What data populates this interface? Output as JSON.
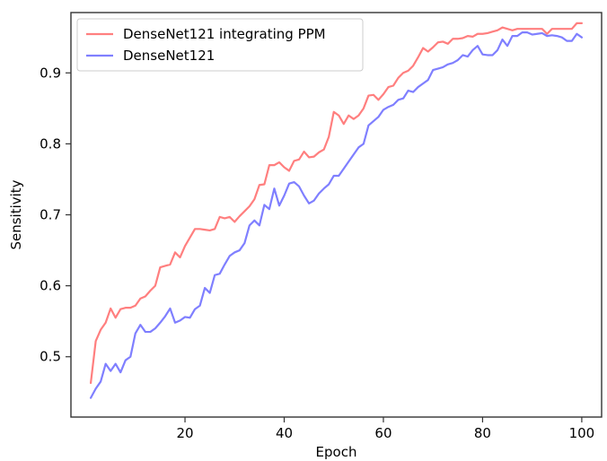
{
  "chart_data": {
    "type": "line",
    "title": "",
    "xlabel": "Epoch",
    "ylabel": "Sensitivity",
    "xlim": [
      -3,
      104
    ],
    "ylim": [
      0.415,
      0.985
    ],
    "x_ticks": [
      {
        "value": 20,
        "label": "20"
      },
      {
        "value": 40,
        "label": "40"
      },
      {
        "value": 60,
        "label": "60"
      },
      {
        "value": 80,
        "label": "80"
      },
      {
        "value": 100,
        "label": "100"
      }
    ],
    "y_ticks": [
      {
        "value": 0.5,
        "label": "0.5"
      },
      {
        "value": 0.6,
        "label": "0.6"
      },
      {
        "value": 0.7,
        "label": "0.7"
      },
      {
        "value": 0.8,
        "label": "0.8"
      },
      {
        "value": 0.9,
        "label": "0.9"
      }
    ],
    "grid": false,
    "legend_position": "top-left",
    "series": [
      {
        "name": "DenseNet121 integrating PPM",
        "color": "#ff7f7f",
        "x": [
          1,
          2,
          3,
          4,
          5,
          6,
          7,
          8,
          9,
          10,
          11,
          12,
          13,
          14,
          15,
          16,
          17,
          18,
          19,
          20,
          21,
          22,
          23,
          24,
          25,
          26,
          27,
          28,
          29,
          30,
          31,
          32,
          33,
          34,
          35,
          36,
          37,
          38,
          39,
          40,
          41,
          42,
          43,
          44,
          45,
          46,
          47,
          48,
          49,
          50,
          51,
          52,
          53,
          54,
          55,
          56,
          57,
          58,
          59,
          60,
          61,
          62,
          63,
          64,
          65,
          66,
          67,
          68,
          69,
          70,
          71,
          72,
          73,
          74,
          75,
          76,
          77,
          78,
          79,
          80,
          81,
          82,
          83,
          84,
          85,
          86,
          87,
          88,
          89,
          90,
          91,
          92,
          93,
          94,
          95,
          96,
          97,
          98,
          99,
          100
        ],
        "values": [
          0.463,
          0.522,
          0.538,
          0.548,
          0.568,
          0.555,
          0.567,
          0.569,
          0.569,
          0.572,
          0.582,
          0.585,
          0.593,
          0.6,
          0.626,
          0.628,
          0.63,
          0.647,
          0.64,
          0.656,
          0.668,
          0.68,
          0.68,
          0.679,
          0.678,
          0.68,
          0.697,
          0.695,
          0.697,
          0.69,
          0.698,
          0.705,
          0.712,
          0.722,
          0.742,
          0.743,
          0.77,
          0.77,
          0.774,
          0.767,
          0.762,
          0.776,
          0.778,
          0.789,
          0.781,
          0.782,
          0.788,
          0.792,
          0.81,
          0.845,
          0.84,
          0.828,
          0.84,
          0.835,
          0.84,
          0.85,
          0.868,
          0.869,
          0.862,
          0.87,
          0.88,
          0.882,
          0.893,
          0.9,
          0.903,
          0.91,
          0.922,
          0.935,
          0.93,
          0.936,
          0.943,
          0.944,
          0.941,
          0.948,
          0.948,
          0.949,
          0.952,
          0.951,
          0.955,
          0.955,
          0.956,
          0.958,
          0.96,
          0.964,
          0.962,
          0.96,
          0.962,
          0.962,
          0.962,
          0.962,
          0.962,
          0.962,
          0.955,
          0.962,
          0.962,
          0.962,
          0.962,
          0.962,
          0.97,
          0.97
        ]
      },
      {
        "name": "DenseNet121",
        "color": "#7f7fff",
        "x": [
          1,
          2,
          3,
          4,
          5,
          6,
          7,
          8,
          9,
          10,
          11,
          12,
          13,
          14,
          15,
          16,
          17,
          18,
          19,
          20,
          21,
          22,
          23,
          24,
          25,
          26,
          27,
          28,
          29,
          30,
          31,
          32,
          33,
          34,
          35,
          36,
          37,
          38,
          39,
          40,
          41,
          42,
          43,
          44,
          45,
          46,
          47,
          48,
          49,
          50,
          51,
          52,
          53,
          54,
          55,
          56,
          57,
          58,
          59,
          60,
          61,
          62,
          63,
          64,
          65,
          66,
          67,
          68,
          69,
          70,
          71,
          72,
          73,
          74,
          75,
          76,
          77,
          78,
          79,
          80,
          81,
          82,
          83,
          84,
          85,
          86,
          87,
          88,
          89,
          90,
          91,
          92,
          93,
          94,
          95,
          96,
          97,
          98,
          99,
          100
        ],
        "values": [
          0.442,
          0.455,
          0.465,
          0.49,
          0.48,
          0.49,
          0.478,
          0.495,
          0.5,
          0.533,
          0.545,
          0.535,
          0.535,
          0.54,
          0.548,
          0.557,
          0.568,
          0.548,
          0.551,
          0.556,
          0.555,
          0.567,
          0.572,
          0.597,
          0.59,
          0.615,
          0.617,
          0.63,
          0.642,
          0.647,
          0.65,
          0.66,
          0.685,
          0.692,
          0.685,
          0.714,
          0.708,
          0.737,
          0.713,
          0.727,
          0.744,
          0.746,
          0.74,
          0.727,
          0.716,
          0.72,
          0.73,
          0.737,
          0.743,
          0.755,
          0.755,
          0.765,
          0.775,
          0.785,
          0.795,
          0.8,
          0.826,
          0.832,
          0.838,
          0.848,
          0.852,
          0.855,
          0.862,
          0.864,
          0.875,
          0.873,
          0.88,
          0.885,
          0.89,
          0.904,
          0.906,
          0.908,
          0.912,
          0.914,
          0.918,
          0.925,
          0.923,
          0.932,
          0.938,
          0.926,
          0.925,
          0.925,
          0.932,
          0.947,
          0.938,
          0.952,
          0.952,
          0.957,
          0.957,
          0.954,
          0.955,
          0.956,
          0.952,
          0.953,
          0.952,
          0.95,
          0.945,
          0.945,
          0.955,
          0.95
        ]
      }
    ]
  }
}
